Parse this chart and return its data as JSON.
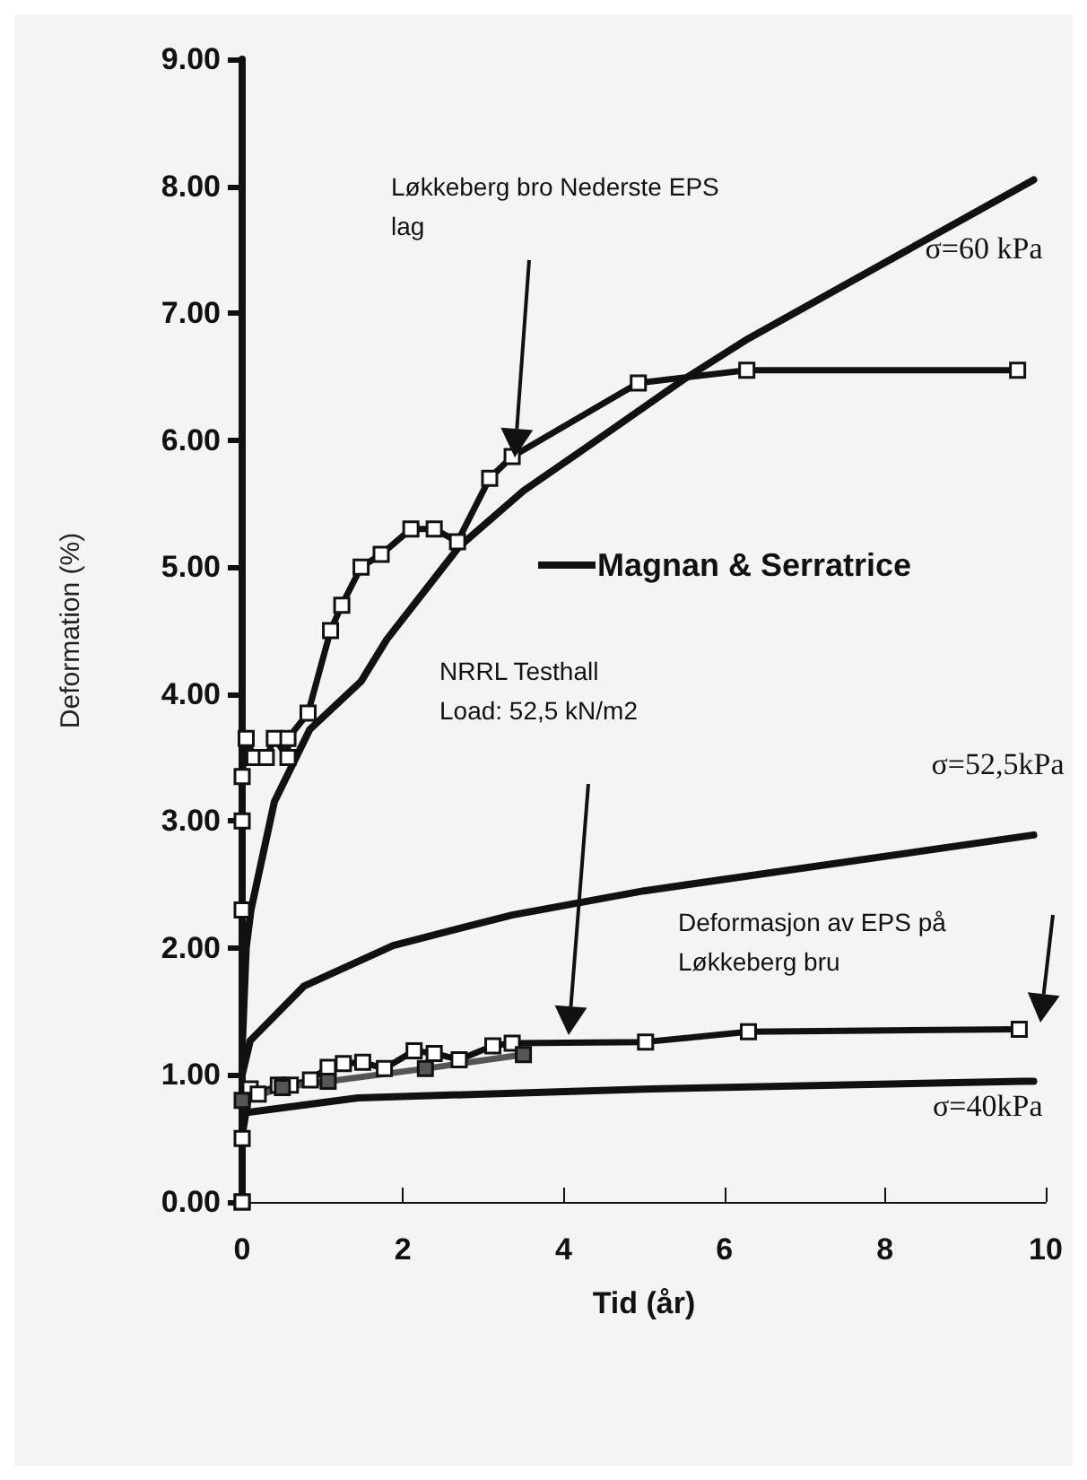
{
  "chart_data": {
    "type": "line",
    "xlabel": "Tid (år)",
    "ylabel": "Deformation (%)",
    "xlim": [
      0,
      10
    ],
    "xticks": [
      0,
      2,
      4,
      6,
      8,
      10
    ],
    "ylim": [
      0,
      9
    ],
    "yticks": [
      {
        "value": 0,
        "label": "0.00"
      },
      {
        "value": 1,
        "label": "1.00"
      },
      {
        "value": 2,
        "label": "2.00"
      },
      {
        "value": 3,
        "label": "3.00"
      },
      {
        "value": 4,
        "label": "4.00"
      },
      {
        "value": 5,
        "label": "5.00"
      },
      {
        "value": 6,
        "label": "6.00"
      },
      {
        "value": 7,
        "label": "7.00"
      },
      {
        "value": 8,
        "label": "8.00"
      },
      {
        "value": 9,
        "label": "9.00"
      }
    ],
    "grid": false,
    "legend": false,
    "series": [
      {
        "color": "#111111",
        "marker": "square",
        "x": [
          0,
          0,
          0,
          0,
          0.05,
          0.15,
          0.3,
          0.4,
          0.57,
          0.57,
          0.82,
          1.1,
          1.24,
          1.48,
          1.73,
          2.1,
          2.39,
          2.68,
          3.08,
          3.36,
          4.93,
          6.28,
          9.65
        ],
        "values": [
          0,
          2.3,
          3.0,
          3.35,
          3.65,
          3.5,
          3.5,
          3.65,
          3.5,
          3.65,
          3.85,
          4.5,
          4.7,
          5.0,
          5.1,
          5.3,
          5.3,
          5.2,
          5.7,
          5.87,
          6.45,
          6.55,
          6.55
        ]
      },
      {
        "color": "#111111",
        "marker": "square",
        "x": [
          0,
          0,
          0.1,
          0.2,
          0.45,
          0.6,
          0.85,
          1.07,
          1.26,
          1.5,
          1.77,
          2.14,
          2.39,
          2.7,
          3.12,
          3.36,
          5.02,
          6.3,
          9.67
        ],
        "values": [
          0,
          0.5,
          0.89,
          0.85,
          0.92,
          0.92,
          0.96,
          1.06,
          1.09,
          1.1,
          1.05,
          1.19,
          1.17,
          1.12,
          1.23,
          1.25,
          1.26,
          1.34,
          1.36
        ]
      },
      {
        "color": "#555555",
        "marker": "square",
        "x": [
          0,
          0.5,
          1.07,
          2.28,
          3.5
        ],
        "values": [
          0.8,
          0.9,
          0.95,
          1.05,
          1.16
        ]
      },
      {
        "name": "σ=60 kPa",
        "color": "#111111",
        "marker": "none",
        "x": [
          0,
          0.05,
          0.11,
          0.4,
          0.84,
          1.48,
          1.8,
          2.7,
          3.5,
          4.3,
          5.5,
          6.3,
          9.85
        ],
        "values": [
          1.2,
          2.0,
          2.3,
          3.15,
          3.72,
          4.1,
          4.43,
          5.16,
          5.6,
          5.95,
          6.48,
          6.8,
          8.05
        ]
      },
      {
        "name": "σ=52,5kPa",
        "color": "#111111",
        "marker": "none",
        "x": [
          0,
          0.1,
          0.77,
          1.88,
          3.36,
          5.0,
          9.85
        ],
        "values": [
          1.0,
          1.27,
          1.7,
          2.02,
          2.26,
          2.45,
          2.89
        ]
      },
      {
        "name": "σ=40kPa",
        "color": "#111111",
        "marker": "none",
        "x": [
          0,
          1.44,
          5.1,
          9.7,
          9.85
        ],
        "values": [
          0.7,
          0.82,
          0.89,
          0.95,
          0.95
        ]
      }
    ],
    "annotations": [
      "Løkkeberg bro Nederste EPS\nlag",
      "NRRL Testhall\nLoad: 52,5 kN/m2",
      "Deformasjon av EPS på\nLøkkeberg bru",
      "Magnan & Serratrice"
    ]
  }
}
